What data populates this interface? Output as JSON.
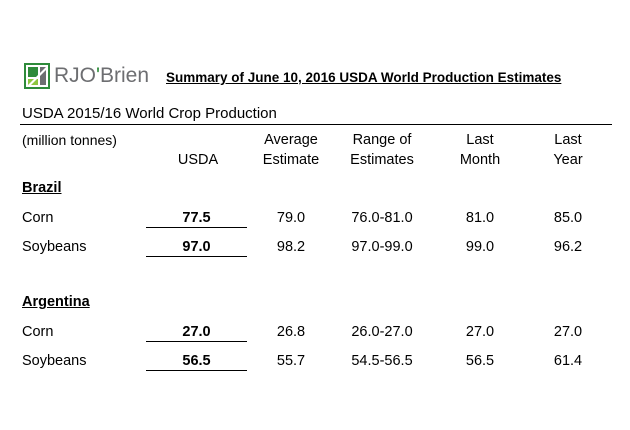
{
  "logo": {
    "name_part1": "RJO",
    "apostrophe": "'",
    "name_part2": "Brien"
  },
  "summary_title": "Summary of June 10, 2016 USDA World Production Estimates",
  "section_title": "USDA 2015/16 World Crop Production",
  "units_label": "(million tonnes)",
  "headers": {
    "usda": "USDA",
    "average": "Average\nEstimate",
    "range": "Range of\nEstimates",
    "last_month": "Last\nMonth",
    "last_year": "Last\nYear"
  },
  "brazil": {
    "name": "Brazil",
    "rows": [
      {
        "crop": "Corn",
        "usda": "77.5",
        "average": "79.0",
        "range": "76.0-81.0",
        "last_month": "81.0",
        "last_year": "85.0"
      },
      {
        "crop": "Soybeans",
        "usda": "97.0",
        "average": "98.2",
        "range": "97.0-99.0",
        "last_month": "99.0",
        "last_year": "96.2"
      }
    ]
  },
  "argentina": {
    "name": "Argentina",
    "rows": [
      {
        "crop": "Corn",
        "usda": "27.0",
        "average": "26.8",
        "range": "26.0-27.0",
        "last_month": "27.0",
        "last_year": "27.0"
      },
      {
        "crop": "Soybeans",
        "usda": "56.5",
        "average": "55.7",
        "range": "54.5-56.5",
        "last_month": "56.5",
        "last_year": "61.4"
      }
    ]
  },
  "colors": {
    "logo_green": "#2e8b3a",
    "logo_gray": "#6d6e71"
  }
}
